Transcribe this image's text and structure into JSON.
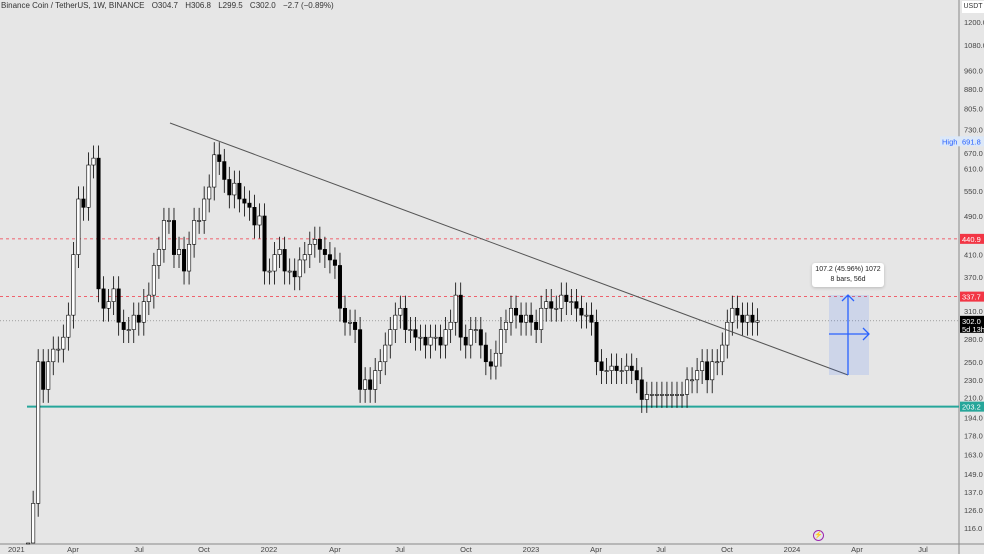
{
  "header": {
    "symbol": "Binance Coin / TetherUS, 1W, BINANCE",
    "open": "O304.7",
    "high": "H306.8",
    "low": "L299.5",
    "close": "C302.0",
    "change": "−2.7 (−0.89%)"
  },
  "currency": "USDT",
  "measure": {
    "line1": "107.2 (45.96%) 1072",
    "line2": "8 bars, 56d"
  },
  "colors": {
    "up": "#ffffff",
    "down": "#000000",
    "resistance": "#f23645",
    "support": "#26a69a",
    "measure": "#2962ff"
  },
  "chart_data": {
    "type": "candlestick",
    "title": "Binance Coin / TetherUS, 1W, BINANCE",
    "scale": "log",
    "ylim": [
      108,
      1300
    ],
    "y_ticks": [
      "1200.0",
      "1080.0",
      "960.0",
      "880.0",
      "805.0",
      "730.0",
      "670.0",
      "610.0",
      "550.0",
      "490.0",
      "410.0",
      "370.0",
      "310.0",
      "280.0",
      "250.0",
      "230.0",
      "210.0",
      "194.0",
      "178.0",
      "163.0",
      "149.0",
      "137.0",
      "126.0",
      "116.0"
    ],
    "x_ticks": [
      "2021",
      "Apr",
      "Jul",
      "Oct",
      "2022",
      "Apr",
      "Jul",
      "Oct",
      "2023",
      "Apr",
      "Jul",
      "Oct",
      "2024",
      "Apr",
      "Jul"
    ],
    "first_week_index": 4,
    "first_open": 42,
    "closes": [
      52,
      130,
      250,
      220,
      250,
      265,
      265,
      280,
      310,
      410,
      530,
      510,
      620,
      640,
      350,
      320,
      330,
      350,
      300,
      290,
      290,
      310,
      300,
      330,
      340,
      390,
      420,
      480,
      480,
      410,
      420,
      380,
      430,
      480,
      480,
      530,
      560,
      650,
      630,
      580,
      540,
      570,
      530,
      520,
      510,
      470,
      490,
      380,
      380,
      410,
      420,
      380,
      380,
      370,
      400,
      410,
      430,
      440,
      420,
      410,
      400,
      390,
      320,
      300,
      300,
      290,
      220,
      230,
      220,
      240,
      250,
      270,
      290,
      310,
      320,
      290,
      290,
      280,
      280,
      270,
      280,
      280,
      270,
      290,
      300,
      340,
      280,
      270,
      290,
      290,
      270,
      250,
      245,
      260,
      290,
      300,
      320,
      310,
      300,
      310,
      300,
      290,
      320,
      330,
      320,
      320,
      340,
      330,
      330,
      320,
      310,
      310,
      300,
      250,
      240,
      240,
      245,
      240,
      240,
      245,
      240,
      230,
      210,
      215,
      215,
      215,
      215,
      215,
      215,
      215,
      215,
      230,
      230,
      240,
      250,
      230,
      250,
      250,
      270,
      300,
      320,
      310,
      300,
      310,
      300,
      302
    ],
    "hlines": [
      {
        "label": "High",
        "value": "691.8"
      },
      {
        "value": "440.9",
        "style": "dashed-red"
      },
      {
        "value": "337.7",
        "style": "dashed-red"
      },
      {
        "value": "302.0",
        "sub": "5d 13h",
        "style": "last-price"
      },
      {
        "value": "203.2",
        "style": "support-green"
      }
    ],
    "trendline": {
      "from": [
        2021.83,
        730
      ],
      "to": [
        2024.18,
        232
      ]
    }
  }
}
